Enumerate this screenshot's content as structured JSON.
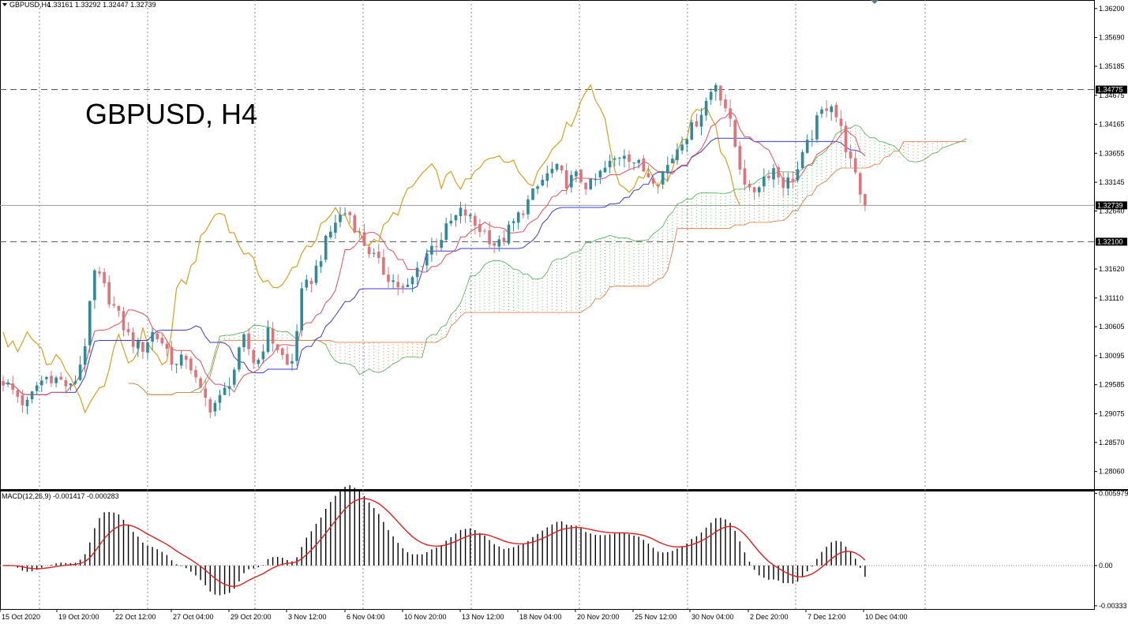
{
  "header": {
    "symbol": "GBPUSD,H4",
    "ohlc": "1.33161 1.33292 1.32447 1.32739"
  },
  "watermark_title": "GBPUSD, H4",
  "macd": {
    "label": "MACD(12,26,9) -0.001417 -0.000283",
    "axis_ticks": [
      "0.005979",
      "0.00",
      "-0.00333"
    ]
  },
  "chart_data": {
    "type": "candlestick",
    "symbol": "GBPUSD",
    "timeframe": "H4",
    "price_ticks": [
      "1.36200",
      "1.35690",
      "1.35185",
      "1.34675",
      "1.34165",
      "1.33655",
      "1.33145",
      "1.32640",
      "1.31620",
      "1.31110",
      "1.30605",
      "1.30095",
      "1.29585",
      "1.29075",
      "1.28570",
      "1.28060"
    ],
    "ylim": [
      1.2775,
      1.3635
    ],
    "time_labels": [
      "15 Oct 2020",
      "19 Oct 20:00",
      "22 Oct 12:00",
      "27 Oct 04:00",
      "29 Oct 20:00",
      "3 Nov 12:00",
      "6 Nov 04:00",
      "10 Nov 20:00",
      "13 Nov 12:00",
      "18 Nov 04:00",
      "20 Nov 20:00",
      "25 Nov 12:00",
      "30 Nov 04:00",
      "2 Dec 20:00",
      "7 Dec 12:00",
      "10 Dec 04:00"
    ],
    "horizontal_levels": [
      {
        "value": 1.34775,
        "label": "1.34775",
        "style": "dashed"
      },
      {
        "value": 1.32739,
        "label": "1.32739",
        "style": "solid-current"
      },
      {
        "value": 1.321,
        "label": "1.32100",
        "style": "dashed"
      }
    ],
    "close_anchors": [
      1.2965,
      1.2945,
      1.292,
      1.296,
      1.2975,
      1.2965,
      1.295,
      1.3015,
      1.316,
      1.312,
      1.308,
      1.304,
      1.302,
      1.305,
      1.303,
      1.299,
      1.301,
      1.295,
      1.292,
      1.2935,
      1.298,
      1.304,
      1.299,
      1.305,
      1.302,
      1.298,
      1.312,
      1.315,
      1.3205,
      1.325,
      1.3265,
      1.322,
      1.319,
      1.316,
      1.314,
      1.312,
      1.316,
      1.3195,
      1.3215,
      1.3245,
      1.3265,
      1.324,
      1.3225,
      1.32,
      1.323,
      1.326,
      1.329,
      1.332,
      1.334,
      1.3315,
      1.3325,
      1.3305,
      1.333,
      1.335,
      1.337,
      1.335,
      1.333,
      1.332,
      1.335,
      1.339,
      1.341,
      1.345,
      1.349,
      1.344,
      1.335,
      1.329,
      1.332,
      1.334,
      1.331,
      1.333,
      1.338,
      1.343,
      1.346,
      1.34,
      1.333,
      1.3274
    ],
    "macd_ylim": [
      -0.0036,
      0.0062
    ]
  },
  "colors": {
    "bull": "#2e8b9a",
    "bear": "#e0727a",
    "tenkan": "#e0505a",
    "kijun": "#3a3ad0",
    "chikou": "#d4a020",
    "cloud_green": "#4caf50",
    "cloud_red": "#e07030",
    "signal": "#e02020"
  }
}
